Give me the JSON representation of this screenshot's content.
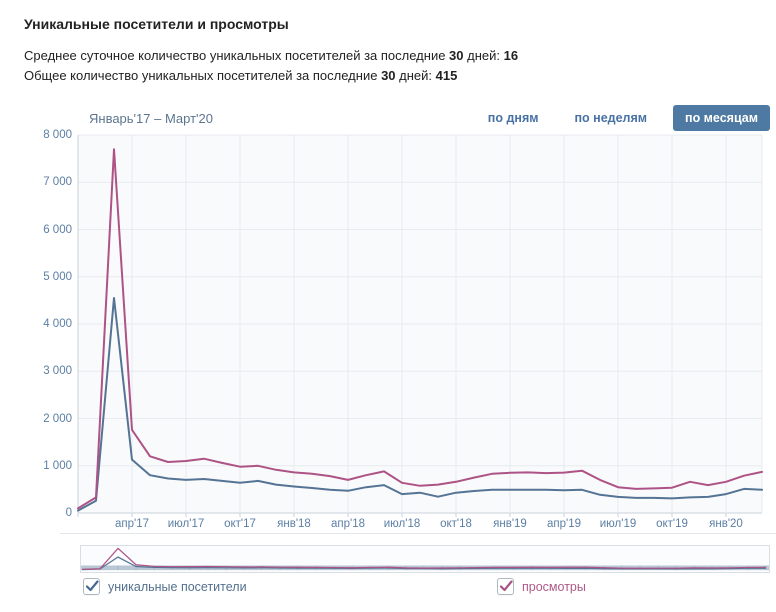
{
  "page": {
    "title": "Уникальные посетители и просмотры"
  },
  "summary": {
    "avg": {
      "text": "Среднее суточное количество уникальных посетителей за последние ",
      "days": "30",
      "text2": " дней: ",
      "value": "16"
    },
    "total": {
      "text": "Общее количество уникальных посетителей за последние ",
      "days": "30",
      "text2": " дней: ",
      "value": "415"
    }
  },
  "chart_header": {
    "period": "Январь'17 – Март'20",
    "tabs": [
      {
        "label": "по дням",
        "active": false
      },
      {
        "label": "по неделям",
        "active": false
      },
      {
        "label": "по месяцам",
        "active": true
      }
    ]
  },
  "chart_data": {
    "type": "line",
    "title": "Уникальные посетители и просмотры",
    "x": [
      "янв'17",
      "фев'17",
      "мар'17",
      "апр'17",
      "май'17",
      "июн'17",
      "июл'17",
      "авг'17",
      "сен'17",
      "окт'17",
      "ноя'17",
      "дек'17",
      "янв'18",
      "фев'18",
      "мар'18",
      "апр'18",
      "май'18",
      "июн'18",
      "июл'18",
      "авг'18",
      "сен'18",
      "окт'18",
      "ноя'18",
      "дек'18",
      "янв'19",
      "фев'19",
      "мар'19",
      "апр'19",
      "май'19",
      "июн'19",
      "июл'19",
      "авг'19",
      "сен'19",
      "окт'19",
      "ноя'19",
      "дек'19",
      "янв'20",
      "фев'20",
      "мар'20"
    ],
    "x_tick_idx": [
      3,
      6,
      9,
      12,
      15,
      18,
      21,
      24,
      27,
      30,
      33,
      36
    ],
    "x_tick_labels": [
      "апр'17",
      "июл'17",
      "окт'17",
      "янв'18",
      "апр'18",
      "июл'18",
      "окт'18",
      "янв'19",
      "апр'19",
      "июл'19",
      "окт'19",
      "янв'20"
    ],
    "y_ticks": [
      0,
      1000,
      2000,
      3000,
      4000,
      5000,
      6000,
      7000,
      8000
    ],
    "y_tick_labels": [
      "0",
      "1 000",
      "2 000",
      "3 000",
      "4 000",
      "5 000",
      "6 000",
      "7 000",
      "8 000"
    ],
    "ylim": [
      0,
      8000
    ],
    "grid": true,
    "legend_position": "bottom",
    "series": [
      {
        "name": "уникальные посетители",
        "color": "#557394",
        "values": [
          50,
          260,
          4550,
          1130,
          800,
          730,
          700,
          720,
          680,
          640,
          680,
          600,
          560,
          530,
          490,
          470,
          545,
          590,
          400,
          430,
          345,
          430,
          465,
          490,
          490,
          490,
          490,
          480,
          490,
          385,
          340,
          320,
          320,
          310,
          330,
          340,
          400,
          510,
          490
        ]
      },
      {
        "name": "просмотры",
        "color": "#ad5386",
        "values": [
          100,
          330,
          7700,
          1760,
          1200,
          1080,
          1100,
          1150,
          1060,
          980,
          1000,
          915,
          860,
          830,
          780,
          700,
          800,
          880,
          640,
          575,
          600,
          660,
          750,
          830,
          850,
          860,
          845,
          855,
          895,
          700,
          545,
          510,
          520,
          535,
          660,
          590,
          660,
          790,
          870
        ]
      }
    ]
  },
  "legend": [
    {
      "label": "уникальные посетители",
      "checked": true,
      "color": "#53708e",
      "check_color": "#466991"
    },
    {
      "label": "просмотры",
      "checked": true,
      "color": "#ae5a89",
      "check_color": "#a85383"
    }
  ],
  "colors": {
    "grid": "#e7ebf0",
    "axis": "#c8d1d9",
    "axis_text": "#5b7fa4",
    "plot_bg": "#f9fafb",
    "active_tab_bg": "#4d79a2",
    "minimap_bar": "#b9c6d3",
    "minimap_tick": "#9fb2c5"
  }
}
